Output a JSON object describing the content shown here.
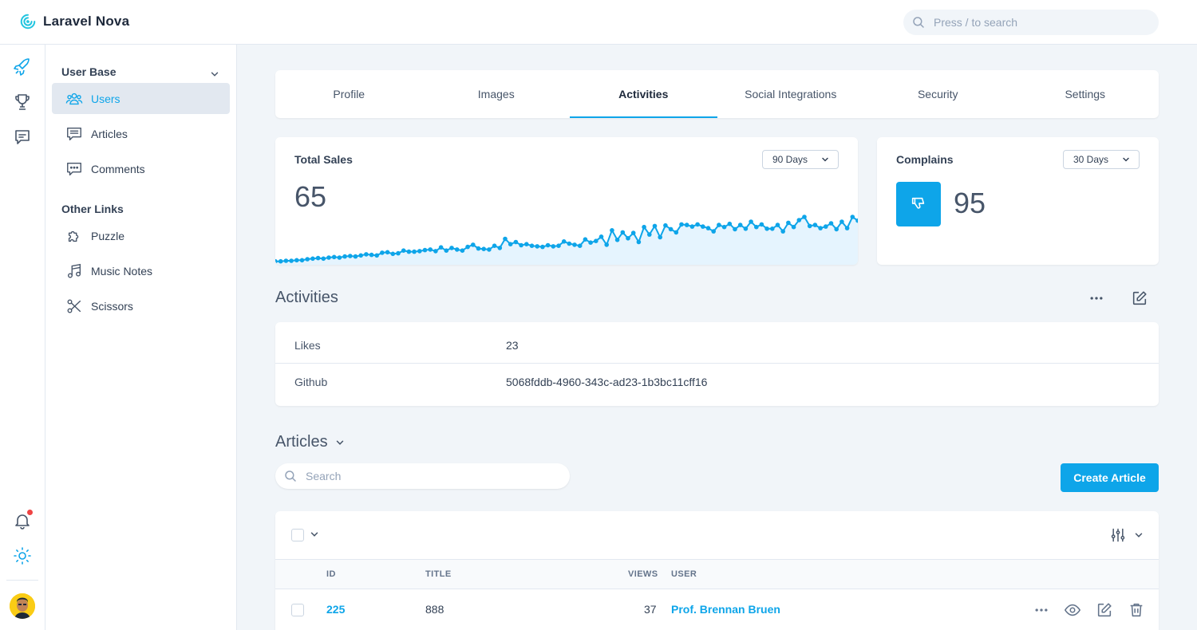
{
  "app": {
    "name": "Laravel Nova"
  },
  "search": {
    "placeholder": "Press / to search"
  },
  "rail": {
    "icons": [
      "rocket-icon",
      "trophy-icon",
      "chat-icon",
      "bell-icon",
      "sun-icon"
    ],
    "has_notification": true
  },
  "sidebar": {
    "groups": [
      {
        "title": "User Base",
        "items": [
          {
            "label": "Users",
            "active": true
          },
          {
            "label": "Articles"
          },
          {
            "label": "Comments"
          }
        ]
      },
      {
        "title": "Other Links",
        "items": [
          {
            "label": "Puzzle"
          },
          {
            "label": "Music Notes"
          },
          {
            "label": "Scissors"
          }
        ]
      }
    ]
  },
  "tabs": [
    {
      "label": "Profile"
    },
    {
      "label": "Images"
    },
    {
      "label": "Activities",
      "active": true
    },
    {
      "label": "Social Integrations"
    },
    {
      "label": "Security"
    },
    {
      "label": "Settings"
    }
  ],
  "metrics": {
    "total_sales": {
      "title": "Total Sales",
      "value": "65",
      "range": "90 Days"
    },
    "complains": {
      "title": "Complains",
      "value": "95",
      "range": "30 Days"
    }
  },
  "chart_data": {
    "type": "area",
    "title": "",
    "xlabel": "",
    "ylabel": "",
    "values": [
      2,
      2,
      3,
      3,
      4,
      4,
      6,
      7,
      8,
      7,
      9,
      10,
      9,
      11,
      12,
      11,
      13,
      15,
      14,
      13,
      18,
      19,
      16,
      17,
      22,
      20,
      20,
      21,
      23,
      24,
      21,
      28,
      22,
      27,
      24,
      22,
      29,
      33,
      26,
      25,
      24,
      31,
      27,
      44,
      34,
      38,
      32,
      34,
      31,
      30,
      29,
      32,
      30,
      31,
      39,
      35,
      33,
      31,
      43,
      37,
      40,
      48,
      33,
      60,
      42,
      56,
      45,
      55,
      38,
      66,
      52,
      68,
      47,
      69,
      62,
      56,
      71,
      70,
      67,
      71,
      67,
      64,
      58,
      70,
      66,
      72,
      62,
      70,
      63,
      76,
      66,
      71,
      63,
      63,
      70,
      58,
      74,
      66,
      79,
      85,
      68,
      70,
      64,
      67,
      73,
      62,
      76,
      64,
      85,
      78
    ]
  },
  "activities": {
    "title": "Activities",
    "rows": [
      {
        "label": "Likes",
        "value": "23"
      },
      {
        "label": "Github",
        "value": "5068fddb-4960-343c-ad23-1b3bc11cff16"
      }
    ]
  },
  "articles": {
    "title": "Articles",
    "search_placeholder": "Search",
    "create_label": "Create Article",
    "columns": {
      "id": "ID",
      "title": "TITLE",
      "views": "VIEWS",
      "user": "USER"
    },
    "rows": [
      {
        "id": "225",
        "title": "888",
        "views": "37",
        "user": "Prof. Brennan Bruen"
      }
    ]
  },
  "colors": {
    "accent": "#0ea5e9",
    "notification": "#ef4444"
  }
}
